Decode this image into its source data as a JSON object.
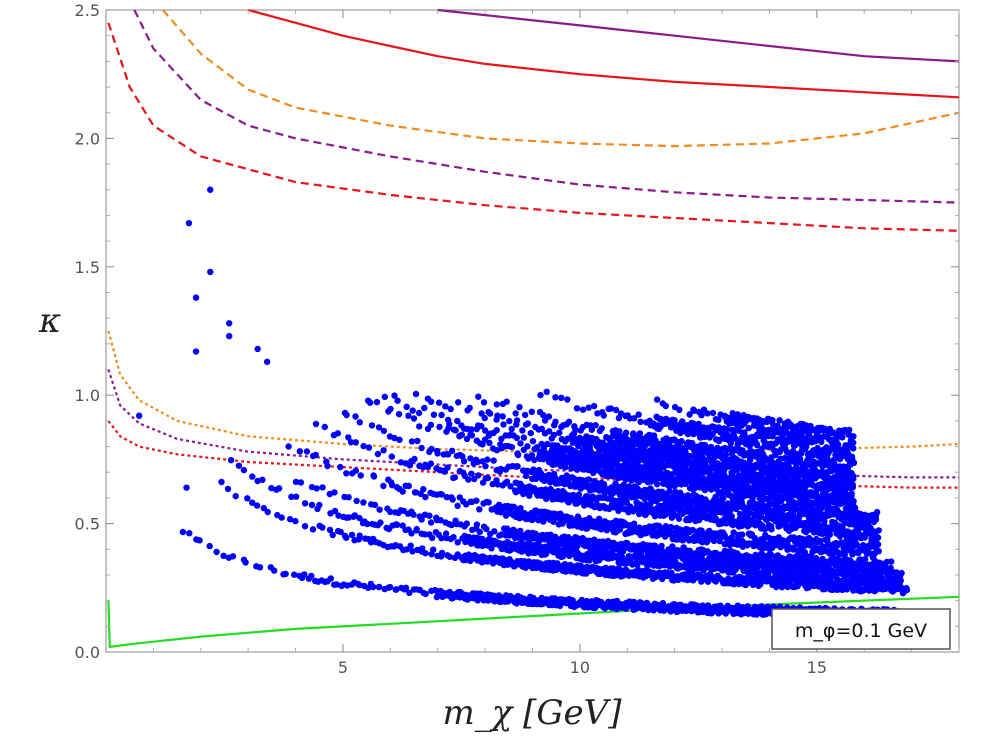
{
  "chart_data": {
    "type": "scatter",
    "title": "",
    "xlabel": "m_χ [GeV]",
    "ylabel": "κ",
    "xlim": [
      0,
      18
    ],
    "ylim": [
      0,
      2.5
    ],
    "x_ticks": [
      5,
      10,
      15
    ],
    "y_ticks": [
      0.0,
      0.5,
      1.0,
      1.5,
      2.0,
      2.5
    ],
    "x_tick_labels": [
      "5",
      "10",
      "15"
    ],
    "y_tick_labels": [
      "0.0",
      "0.5",
      "1.0",
      "1.5",
      "2.0",
      "2.5"
    ],
    "grid": false,
    "annotation": {
      "text": "m_φ=0.1 GeV",
      "position": "bottom-right"
    },
    "lines": [
      {
        "name": "red-solid",
        "color": "#e8141a",
        "style": "solid",
        "points": [
          [
            3.0,
            2.5
          ],
          [
            4,
            2.45
          ],
          [
            5,
            2.4
          ],
          [
            6,
            2.36
          ],
          [
            7,
            2.32
          ],
          [
            8,
            2.29
          ],
          [
            10,
            2.25
          ],
          [
            12,
            2.22
          ],
          [
            14,
            2.2
          ],
          [
            16,
            2.18
          ],
          [
            18,
            2.16
          ]
        ]
      },
      {
        "name": "purple-solid",
        "color": "#8b1a8b",
        "style": "solid",
        "points": [
          [
            7.0,
            2.5
          ],
          [
            8,
            2.48
          ],
          [
            10,
            2.44
          ],
          [
            12,
            2.4
          ],
          [
            14,
            2.36
          ],
          [
            16,
            2.32
          ],
          [
            18,
            2.3
          ]
        ]
      },
      {
        "name": "orange-dashed",
        "color": "#f08c1e",
        "style": "dashed",
        "points": [
          [
            1.2,
            2.5
          ],
          [
            2,
            2.33
          ],
          [
            3,
            2.19
          ],
          [
            4,
            2.12
          ],
          [
            6,
            2.05
          ],
          [
            8,
            2.0
          ],
          [
            10,
            1.98
          ],
          [
            12,
            1.97
          ],
          [
            14,
            1.98
          ],
          [
            16,
            2.02
          ],
          [
            18,
            2.1
          ]
        ]
      },
      {
        "name": "purple-dashed",
        "color": "#8b1a8b",
        "style": "dashed",
        "points": [
          [
            0.6,
            2.5
          ],
          [
            1,
            2.35
          ],
          [
            2,
            2.15
          ],
          [
            3,
            2.05
          ],
          [
            4,
            2.0
          ],
          [
            6,
            1.93
          ],
          [
            8,
            1.87
          ],
          [
            10,
            1.82
          ],
          [
            12,
            1.79
          ],
          [
            14,
            1.77
          ],
          [
            16,
            1.76
          ],
          [
            18,
            1.75
          ]
        ]
      },
      {
        "name": "red-dashed",
        "color": "#e8141a",
        "style": "dashed",
        "points": [
          [
            0.05,
            2.45
          ],
          [
            0.5,
            2.2
          ],
          [
            1,
            2.05
          ],
          [
            2,
            1.93
          ],
          [
            4,
            1.83
          ],
          [
            6,
            1.78
          ],
          [
            8,
            1.74
          ],
          [
            10,
            1.71
          ],
          [
            12,
            1.69
          ],
          [
            14,
            1.67
          ],
          [
            16,
            1.65
          ],
          [
            18,
            1.64
          ]
        ]
      },
      {
        "name": "orange-dotted",
        "color": "#f08c1e",
        "style": "dotted",
        "points": [
          [
            0.05,
            1.25
          ],
          [
            0.3,
            1.08
          ],
          [
            0.7,
            0.98
          ],
          [
            1.5,
            0.9
          ],
          [
            3,
            0.84
          ],
          [
            5,
            0.81
          ],
          [
            7,
            0.79
          ],
          [
            9,
            0.78
          ],
          [
            11,
            0.78
          ],
          [
            13,
            0.78
          ],
          [
            15,
            0.79
          ],
          [
            17,
            0.8
          ],
          [
            18,
            0.81
          ]
        ]
      },
      {
        "name": "purple-dotted",
        "color": "#8b1a8b",
        "style": "dotted",
        "points": [
          [
            0.05,
            1.1
          ],
          [
            0.3,
            0.96
          ],
          [
            0.7,
            0.89
          ],
          [
            1.5,
            0.83
          ],
          [
            3,
            0.78
          ],
          [
            5,
            0.75
          ],
          [
            7,
            0.73
          ],
          [
            9,
            0.71
          ],
          [
            11,
            0.7
          ],
          [
            13,
            0.69
          ],
          [
            15,
            0.69
          ],
          [
            17,
            0.68
          ],
          [
            18,
            0.68
          ]
        ]
      },
      {
        "name": "red-dotted",
        "color": "#e8141a",
        "style": "dotted",
        "points": [
          [
            0.05,
            0.9
          ],
          [
            0.3,
            0.84
          ],
          [
            0.7,
            0.8
          ],
          [
            1.5,
            0.77
          ],
          [
            3,
            0.74
          ],
          [
            5,
            0.72
          ],
          [
            7,
            0.7
          ],
          [
            9,
            0.68
          ],
          [
            11,
            0.67
          ],
          [
            13,
            0.66
          ],
          [
            15,
            0.65
          ],
          [
            17,
            0.64
          ],
          [
            18,
            0.64
          ]
        ]
      },
      {
        "name": "green-solid",
        "color": "#22dd22",
        "style": "solid",
        "points": [
          [
            0.05,
            0.2
          ],
          [
            0.08,
            0.02
          ],
          [
            0.5,
            0.03
          ],
          [
            1,
            0.04
          ],
          [
            2,
            0.06
          ],
          [
            4,
            0.09
          ],
          [
            6,
            0.11
          ],
          [
            8,
            0.13
          ],
          [
            10,
            0.15
          ],
          [
            12,
            0.17
          ],
          [
            14,
            0.185
          ],
          [
            16,
            0.2
          ],
          [
            18,
            0.215
          ]
        ]
      }
    ],
    "scatter_bands": [
      {
        "name": "band-1",
        "color": "#0000ff",
        "k": 0.6,
        "x": [
          1.6,
          16.9
        ],
        "spread": 0.02
      },
      {
        "name": "band-2",
        "color": "#0000ff",
        "k": 1.02,
        "x": [
          2.5,
          16.9
        ],
        "spread": 0.02
      },
      {
        "name": "band-3",
        "color": "#0000ff",
        "k": 1.2,
        "x": [
          2.6,
          16.8
        ],
        "spread": 0.025
      },
      {
        "name": "band-4",
        "color": "#0000ff",
        "k": 1.35,
        "x": [
          4.0,
          16.6
        ],
        "spread": 0.025
      },
      {
        "name": "band-5",
        "color": "#0000ff",
        "k": 1.6,
        "x": [
          3.9,
          16.3
        ],
        "spread": 0.03
      },
      {
        "name": "band-6",
        "color": "#0000ff",
        "k": 1.88,
        "x": [
          4.5,
          16.3
        ],
        "spread": 0.03
      },
      {
        "name": "band-7",
        "color": "#0000ff",
        "k": 2.08,
        "x": [
          5.0,
          16.3
        ],
        "spread": 0.03
      },
      {
        "name": "band-8",
        "color": "#0000ff",
        "k": 2.3,
        "x": [
          5.5,
          15.8
        ],
        "spread": 0.03
      },
      {
        "name": "band-9",
        "color": "#0000ff",
        "k": 2.43,
        "x": [
          5.9,
          15.8
        ],
        "spread": 0.03
      },
      {
        "name": "band-10",
        "color": "#0000ff",
        "k": 2.6,
        "x": [
          6.6,
          15.8
        ],
        "spread": 0.035
      },
      {
        "name": "band-11",
        "color": "#0000ff",
        "k": 2.78,
        "x": [
          7.9,
          15.8
        ],
        "spread": 0.035
      },
      {
        "name": "band-12",
        "color": "#0000ff",
        "k": 3.05,
        "x": [
          9.2,
          15.8
        ],
        "spread": 0.035
      },
      {
        "name": "band-13",
        "color": "#0000ff",
        "k": 3.3,
        "x": [
          11.6,
          15.8
        ],
        "spread": 0.035
      }
    ],
    "isolated_points": [
      [
        1.75,
        1.67
      ],
      [
        1.9,
        1.38
      ],
      [
        1.9,
        1.17
      ],
      [
        2.2,
        1.8
      ],
      [
        2.2,
        1.48
      ],
      [
        2.6,
        1.28
      ],
      [
        2.6,
        1.23
      ],
      [
        3.2,
        1.18
      ],
      [
        3.4,
        1.13
      ],
      [
        0.7,
        0.92
      ],
      [
        1.7,
        0.64
      ]
    ]
  }
}
